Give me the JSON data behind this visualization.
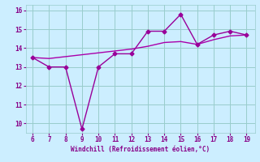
{
  "title": "",
  "xlabel": "Windchill (Refroidissement éolien,°C)",
  "x": [
    6,
    7,
    8,
    9,
    10,
    11,
    12,
    13,
    14,
    15,
    16,
    17,
    18,
    19
  ],
  "line1": [
    13.5,
    13.0,
    13.0,
    9.7,
    13.0,
    13.7,
    13.7,
    14.9,
    14.9,
    15.8,
    14.2,
    14.7,
    14.9,
    14.7
  ],
  "line2": [
    13.5,
    13.45,
    13.55,
    13.65,
    13.75,
    13.85,
    13.95,
    14.1,
    14.3,
    14.35,
    14.2,
    14.45,
    14.65,
    14.7
  ],
  "line1_color": "#990099",
  "line2_color": "#aa00aa",
  "bg_color": "#cceeff",
  "grid_color": "#99cccc",
  "tick_color": "#880088",
  "label_color": "#880088",
  "ylim": [
    9.5,
    16.3
  ],
  "xlim": [
    5.6,
    19.5
  ],
  "yticks": [
    10,
    11,
    12,
    13,
    14,
    15,
    16
  ],
  "xticks": [
    6,
    7,
    8,
    9,
    10,
    11,
    12,
    13,
    14,
    15,
    16,
    17,
    18,
    19
  ],
  "marker": "D",
  "markersize": 2.5,
  "linewidth": 1.0
}
